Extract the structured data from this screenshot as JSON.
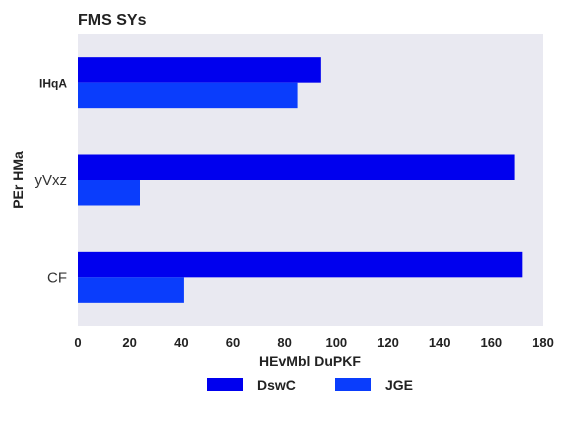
{
  "colors": {
    "plot_background": "#e9e9f1",
    "series_1": "#0000ee",
    "series_2": "#0a3dfc"
  },
  "chart_data": {
    "type": "bar",
    "orientation": "horizontal",
    "title": "FMS SYs",
    "xlabel": "HEvMbl DuPKF",
    "ylabel": "PEr HMa",
    "categories": [
      "IHqA",
      "yVxz",
      "CF"
    ],
    "series": [
      {
        "name": "DswC",
        "values": [
          94,
          169,
          172
        ]
      },
      {
        "name": "JGE",
        "values": [
          85,
          24,
          41
        ]
      }
    ],
    "xlim": [
      0,
      180
    ],
    "xticks": [
      "0",
      "20",
      "40",
      "60",
      "80",
      "100",
      "120",
      "140",
      "160",
      "180"
    ],
    "grid": false,
    "legend": "bottom-center"
  }
}
